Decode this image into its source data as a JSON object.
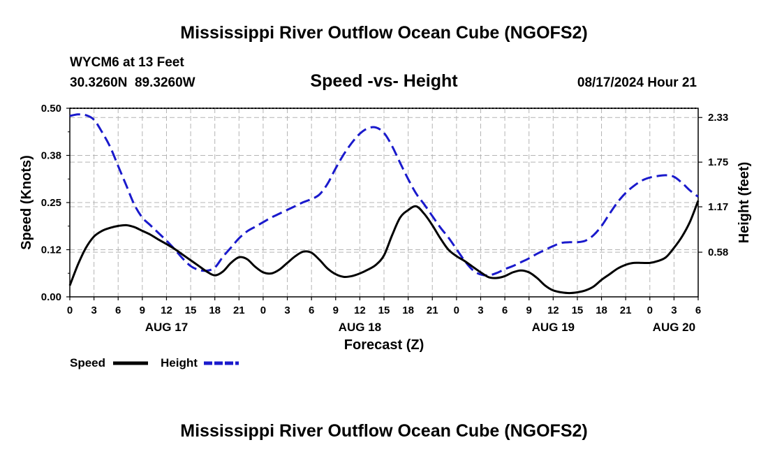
{
  "page_title": "Mississippi River Outflow Ocean Cube (NGOFS2)",
  "footer_title": "Mississippi River Outflow Ocean Cube (NGOFS2)",
  "station": {
    "name": "WYCM6 at 13 Feet",
    "coords": "30.3260N  89.3260W",
    "datetime": "08/17/2024 Hour 21"
  },
  "chart_data": {
    "type": "line",
    "title": "Speed -vs- Height",
    "xlabel": "Forecast (Z)",
    "ylabel": "Speed (Knots)",
    "y2label": "Height (feet)",
    "x_hour_range": [
      0,
      78
    ],
    "ylim": [
      0,
      0.5
    ],
    "y2lim": [
      0,
      2.45
    ],
    "yticks": [
      {
        "v": 0.0,
        "label": "0.00"
      },
      {
        "v": 0.125,
        "label": "0.12"
      },
      {
        "v": 0.25,
        "label": "0.25"
      },
      {
        "v": 0.375,
        "label": "0.38"
      },
      {
        "v": 0.5,
        "label": "0.50"
      }
    ],
    "y2ticks": [
      {
        "v": 0.58,
        "label": "0.58"
      },
      {
        "v": 1.17,
        "label": "1.17"
      },
      {
        "v": 1.75,
        "label": "1.75"
      },
      {
        "v": 2.33,
        "label": "2.33"
      }
    ],
    "xticks": [
      {
        "h": 0,
        "label": "0"
      },
      {
        "h": 3,
        "label": "3"
      },
      {
        "h": 6,
        "label": "6"
      },
      {
        "h": 9,
        "label": "9"
      },
      {
        "h": 12,
        "label": "12"
      },
      {
        "h": 15,
        "label": "15"
      },
      {
        "h": 18,
        "label": "18"
      },
      {
        "h": 21,
        "label": "21"
      },
      {
        "h": 24,
        "label": "0"
      },
      {
        "h": 27,
        "label": "3"
      },
      {
        "h": 30,
        "label": "6"
      },
      {
        "h": 33,
        "label": "9"
      },
      {
        "h": 36,
        "label": "12"
      },
      {
        "h": 39,
        "label": "15"
      },
      {
        "h": 42,
        "label": "18"
      },
      {
        "h": 45,
        "label": "21"
      },
      {
        "h": 48,
        "label": "0"
      },
      {
        "h": 51,
        "label": "3"
      },
      {
        "h": 54,
        "label": "6"
      },
      {
        "h": 57,
        "label": "9"
      },
      {
        "h": 60,
        "label": "12"
      },
      {
        "h": 63,
        "label": "15"
      },
      {
        "h": 66,
        "label": "18"
      },
      {
        "h": 69,
        "label": "21"
      },
      {
        "h": 72,
        "label": "0"
      },
      {
        "h": 75,
        "label": "3"
      },
      {
        "h": 78,
        "label": "6"
      }
    ],
    "dates": [
      {
        "h": 12,
        "label": "AUG 17"
      },
      {
        "h": 36,
        "label": "AUG 18"
      },
      {
        "h": 60,
        "label": "AUG 19"
      },
      {
        "h": 75,
        "label": "AUG 20"
      }
    ],
    "legend": {
      "speed_label": "Speed",
      "height_label": "Height"
    },
    "series": [
      {
        "name": "Speed",
        "axis": "left",
        "color": "#000000",
        "dash": "none",
        "x": [
          0,
          1,
          2,
          3,
          4,
          5,
          6,
          7,
          8,
          9,
          10,
          11,
          12,
          13,
          14,
          15,
          16,
          17,
          18,
          19,
          20,
          21,
          22,
          23,
          24,
          25,
          26,
          27,
          28,
          29,
          30,
          31,
          32,
          33,
          34,
          35,
          36,
          37,
          38,
          39,
          40,
          41,
          42,
          43,
          44,
          45,
          46,
          47,
          48,
          49,
          50,
          51,
          52,
          53,
          54,
          55,
          56,
          57,
          58,
          59,
          60,
          61,
          62,
          63,
          64,
          65,
          66,
          67,
          68,
          69,
          70,
          71,
          72,
          73,
          74,
          75,
          76,
          77,
          78
        ],
        "values": [
          0.03,
          0.085,
          0.13,
          0.16,
          0.175,
          0.183,
          0.188,
          0.19,
          0.185,
          0.175,
          0.165,
          0.152,
          0.14,
          0.127,
          0.112,
          0.097,
          0.082,
          0.067,
          0.057,
          0.067,
          0.09,
          0.105,
          0.1,
          0.08,
          0.065,
          0.062,
          0.072,
          0.09,
          0.108,
          0.12,
          0.117,
          0.098,
          0.075,
          0.06,
          0.053,
          0.055,
          0.062,
          0.072,
          0.085,
          0.11,
          0.163,
          0.21,
          0.23,
          0.24,
          0.22,
          0.19,
          0.155,
          0.125,
          0.108,
          0.095,
          0.08,
          0.065,
          0.052,
          0.05,
          0.055,
          0.065,
          0.07,
          0.065,
          0.05,
          0.03,
          0.017,
          0.012,
          0.01,
          0.012,
          0.017,
          0.027,
          0.045,
          0.06,
          0.075,
          0.085,
          0.09,
          0.09,
          0.09,
          0.095,
          0.105,
          0.13,
          0.16,
          0.2,
          0.255
        ]
      },
      {
        "name": "Height",
        "axis": "right",
        "color": "#1a1acc",
        "dash": "15,7",
        "x": [
          0,
          1,
          2,
          3,
          4,
          5,
          6,
          7,
          8,
          9,
          10,
          11,
          12,
          13,
          14,
          15,
          16,
          17,
          18,
          19,
          20,
          21,
          22,
          23,
          24,
          25,
          26,
          27,
          28,
          29,
          30,
          31,
          32,
          33,
          34,
          35,
          36,
          37,
          38,
          39,
          40,
          41,
          42,
          43,
          44,
          45,
          46,
          47,
          48,
          49,
          50,
          51,
          52,
          53,
          54,
          55,
          56,
          57,
          58,
          59,
          60,
          61,
          62,
          63,
          64,
          65,
          66,
          67,
          68,
          69,
          70,
          71,
          72,
          73,
          74,
          75,
          76,
          77,
          78
        ],
        "values": [
          2.35,
          2.37,
          2.36,
          2.3,
          2.14,
          1.95,
          1.7,
          1.45,
          1.2,
          1.03,
          0.93,
          0.83,
          0.73,
          0.62,
          0.5,
          0.4,
          0.35,
          0.34,
          0.38,
          0.52,
          0.64,
          0.76,
          0.85,
          0.91,
          0.97,
          1.03,
          1.08,
          1.13,
          1.18,
          1.23,
          1.27,
          1.33,
          1.47,
          1.67,
          1.85,
          2.0,
          2.12,
          2.19,
          2.2,
          2.13,
          1.96,
          1.74,
          1.53,
          1.34,
          1.2,
          1.05,
          0.9,
          0.77,
          0.62,
          0.47,
          0.35,
          0.29,
          0.28,
          0.31,
          0.36,
          0.4,
          0.45,
          0.5,
          0.56,
          0.61,
          0.66,
          0.7,
          0.71,
          0.71,
          0.73,
          0.8,
          0.92,
          1.08,
          1.23,
          1.35,
          1.44,
          1.51,
          1.55,
          1.57,
          1.58,
          1.56,
          1.48,
          1.38,
          1.3
        ]
      }
    ]
  }
}
